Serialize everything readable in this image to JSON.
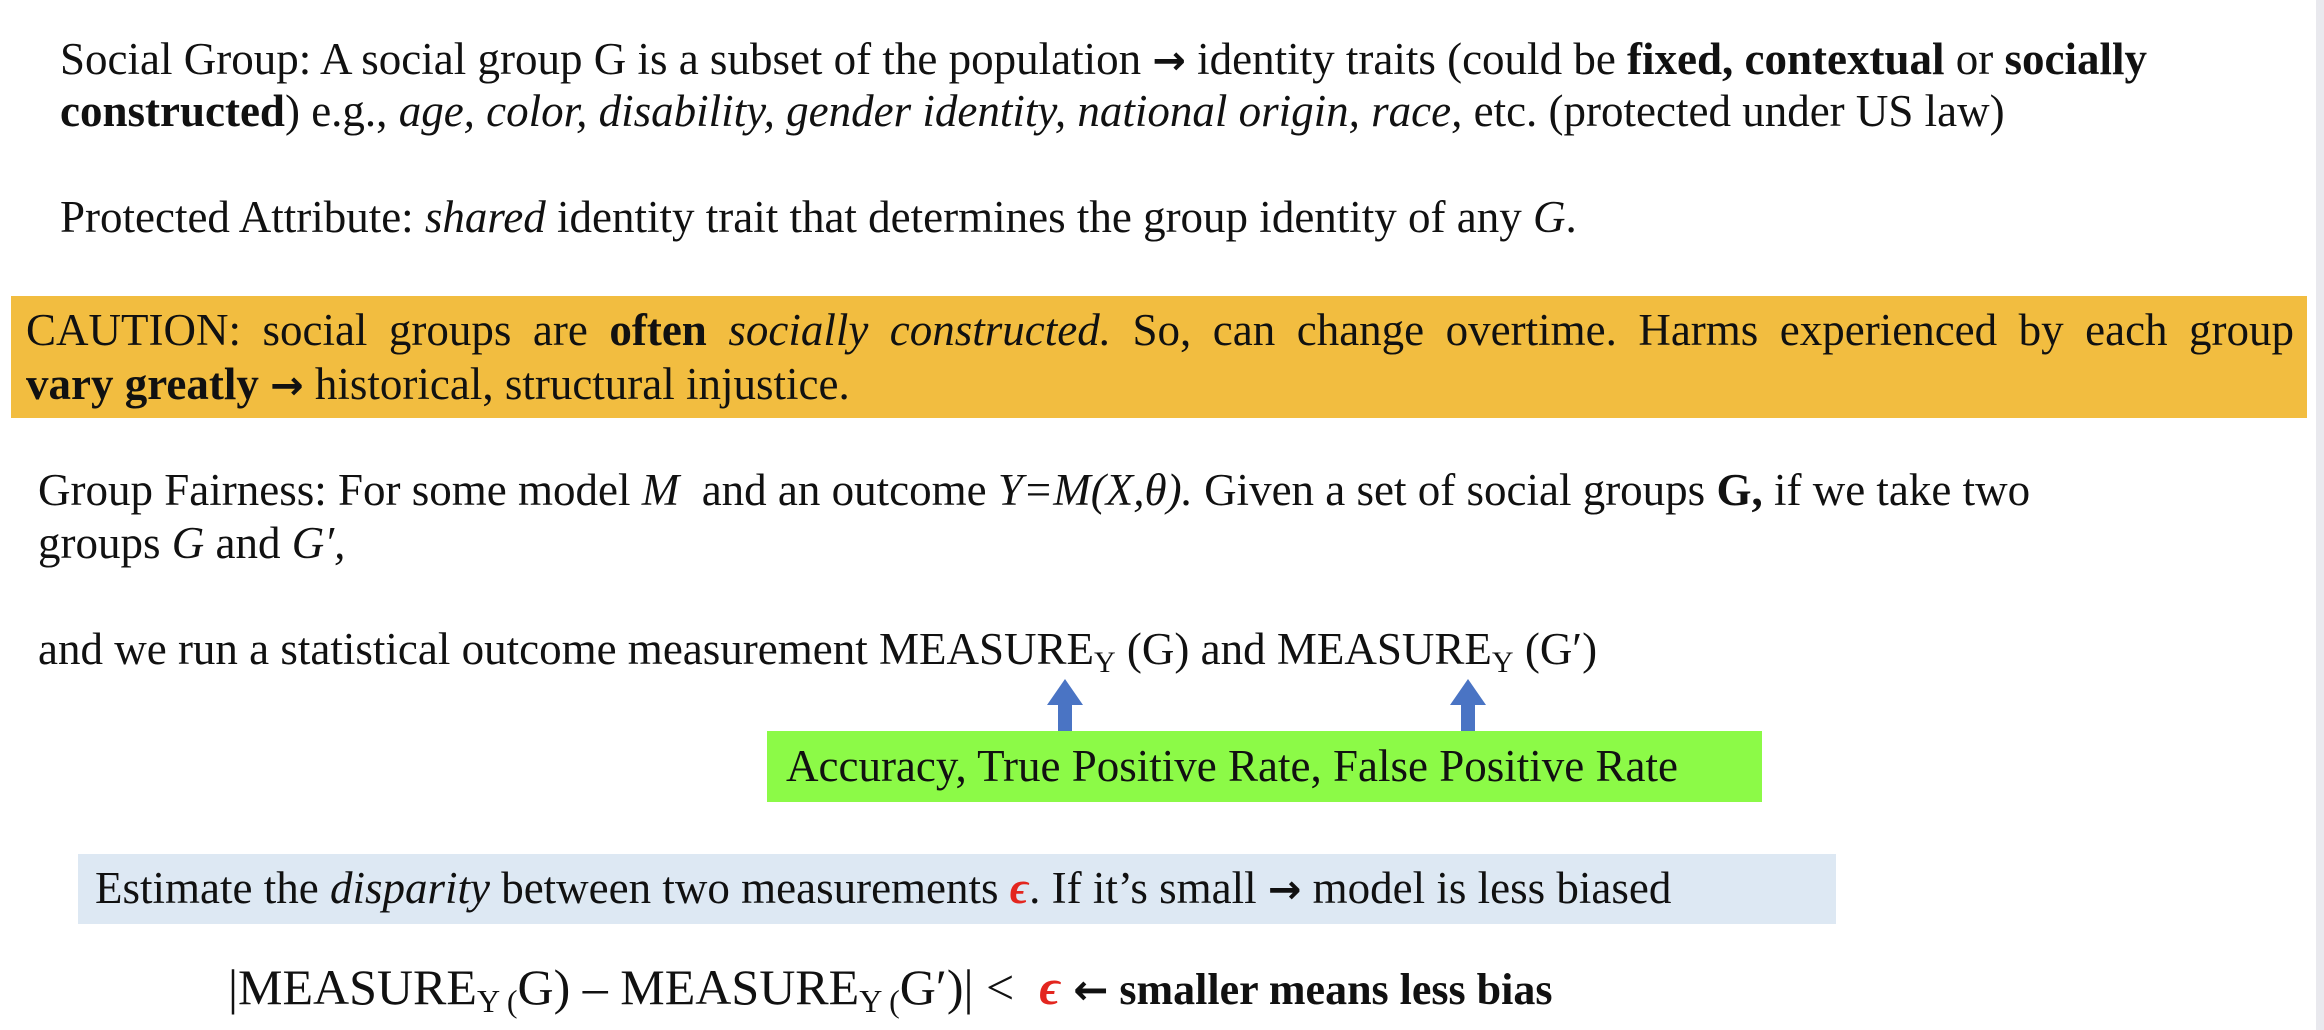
{
  "social_group": {
    "line1_lead": "Social Group: A social group G is a subset of the population ",
    "arrow": "→",
    "line1_mid": " identity traits (could be ",
    "fixed_contextual": "fixed, contextual",
    "or": " or ",
    "socially": "socially",
    "constructed": "constructed",
    "eg": ") e.g., ",
    "examples": "age, color, disability, gender identity, national origin, race,",
    "tail": " etc. (protected under US law)"
  },
  "protected_attribute": {
    "lead": "Protected Attribute: ",
    "shared": "shared",
    "rest": " identity trait that determines the group identity of any ",
    "g": "G",
    "end": "."
  },
  "caution": {
    "lead": "CAUTION: social groups are ",
    "often": "often",
    "socially_constructed": "socially constructed.",
    "rest": " So, can change overtime. Harms experienced by each group",
    "vary": "vary greatly",
    "arrow": "→",
    "end": " historical, structural injustice."
  },
  "group_fairness": {
    "lead": "Group Fairness: For some model ",
    "m": "M",
    "mid": "  and an outcome ",
    "formula": "Y=M(X,θ).",
    "rest": " Given a set of social groups ",
    "bold_g": "G,",
    "tail": " if we take two",
    "line2_lead": "groups ",
    "g": "G",
    "and": " and ",
    "g_prime": "G′,"
  },
  "measurement": {
    "lead": "and we run a statistical outcome measurement ",
    "measure": "MEASURE",
    "sub": "Y",
    "g_paren": " (G)",
    "and": " and ",
    "measure2": "MEASURE",
    "sub2": "Y",
    "g2_paren": " (G′)"
  },
  "metrics_box": {
    "text": "Accuracy, True Positive Rate, False Positive Rate"
  },
  "disparity_box": {
    "lead": "Estimate the ",
    "disparity": "disparity",
    "mid": " between two measurements ",
    "epsilon": "ϵ",
    "rest": ". If it’s small ",
    "arrow": "→",
    "end": " model is less biased"
  },
  "formula": {
    "open": "|MEASURE",
    "sub1": "Y (",
    "g": "G) – MEASURE",
    "sub2": "Y (",
    "g_prime": "G′)| <",
    "epsilon": "ϵ",
    "arrow": "←",
    "note": " smaller means less bias"
  },
  "colors": {
    "caution_bg": "#f2bd40",
    "metrics_bg": "#8cfa47",
    "disparity_bg": "#dde8f3",
    "arrow_blue": "#4a74c4",
    "epsilon_red": "#e3261f"
  }
}
